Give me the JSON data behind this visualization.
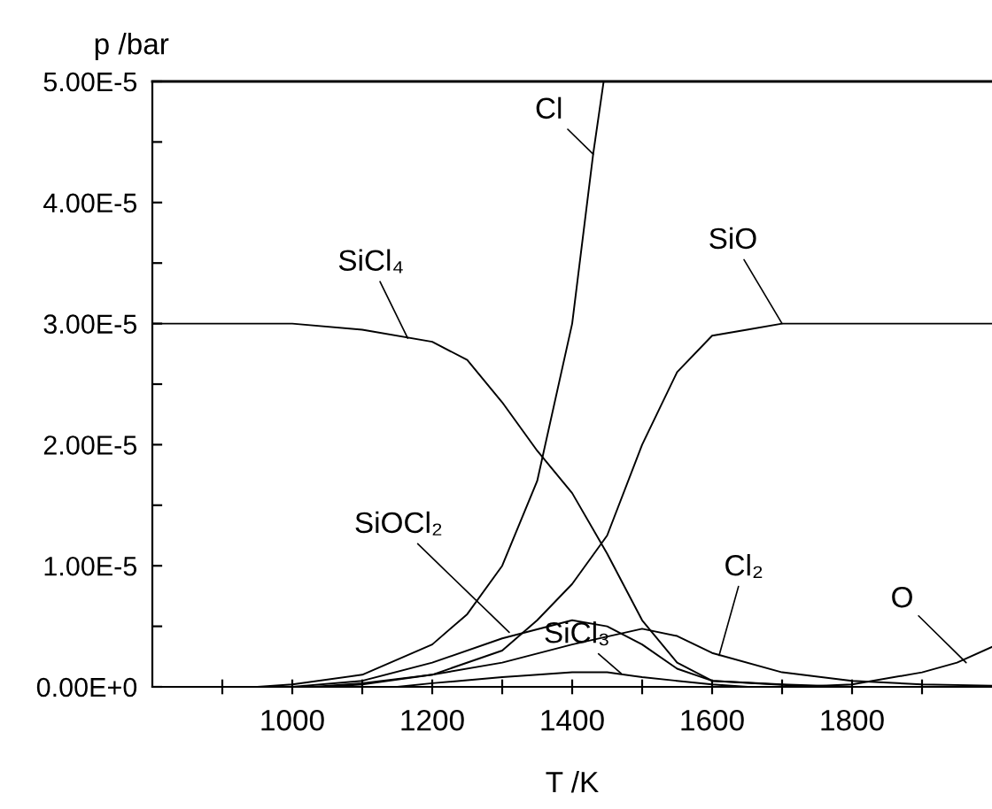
{
  "chart_data": {
    "type": "line",
    "xlabel": "T /K",
    "ylabel": "p /bar",
    "xlim": [
      800,
      2000
    ],
    "ylim": [
      0,
      5e-05
    ],
    "xticks": [
      {
        "value": 900,
        "label": null
      },
      1000,
      {
        "value": 1100,
        "label": null
      },
      1200,
      {
        "value": 1300,
        "label": null
      },
      1400,
      {
        "value": 1500,
        "label": null
      },
      1600,
      {
        "value": 1700,
        "label": null
      },
      1800,
      {
        "value": 1900,
        "label": null
      }
    ],
    "yticks": [
      {
        "value": 0,
        "label": "0.00E+0"
      },
      {
        "value": 5e-06,
        "label": null
      },
      {
        "value": 1e-05,
        "label": "1.00E-5"
      },
      {
        "value": 1.5e-05,
        "label": null
      },
      {
        "value": 2e-05,
        "label": "2.00E-5"
      },
      {
        "value": 2.5e-05,
        "label": null
      },
      {
        "value": 3e-05,
        "label": "3.00E-5"
      },
      {
        "value": 3.5e-05,
        "label": null
      },
      {
        "value": 4e-05,
        "label": "4.00E-5"
      },
      {
        "value": 4.5e-05,
        "label": null
      },
      {
        "value": 5e-05,
        "label": "5.00E-5"
      }
    ],
    "grid": false,
    "legend": false,
    "marker": "none",
    "line_style": "solid",
    "series": [
      {
        "color": "#000000",
        "x": [
          800,
          1000,
          1100,
          1200,
          1250,
          1300,
          1350,
          1400,
          1450,
          1500,
          1550,
          1600,
          1700,
          1800
        ],
        "values": [
          3e-05,
          3e-05,
          2.95e-05,
          2.85e-05,
          2.7e-05,
          2.35e-05,
          1.95e-05,
          1.6e-05,
          1.1e-05,
          5.5e-06,
          2e-06,
          5e-07,
          2e-07,
          0
        ]
      },
      {
        "color": "#000000",
        "x": [
          950,
          1000,
          1100,
          1200,
          1250,
          1300,
          1350,
          1400,
          1430,
          1445
        ],
        "values": [
          0,
          2e-07,
          1e-06,
          3.5e-06,
          6e-06,
          1e-05,
          1.7e-05,
          3e-05,
          4.4e-05,
          5e-05
        ]
      },
      {
        "color": "#000000",
        "x": [
          1050,
          1100,
          1200,
          1300,
          1350,
          1400,
          1450,
          1500,
          1550,
          1600,
          1650,
          1700,
          2000
        ],
        "values": [
          0,
          2e-07,
          1e-06,
          3e-06,
          5.5e-06,
          8.5e-06,
          1.25e-05,
          2e-05,
          2.6e-05,
          2.9e-05,
          2.95e-05,
          3e-05,
          3e-05
        ]
      },
      {
        "color": "#000000",
        "x": [
          1000,
          1100,
          1200,
          1300,
          1400,
          1450,
          1500,
          1550,
          1600,
          1750
        ],
        "values": [
          0,
          5e-07,
          2e-06,
          4e-06,
          5.5e-06,
          5e-06,
          3.5e-06,
          1.5e-06,
          5e-07,
          0
        ]
      },
      {
        "color": "#000000",
        "x": [
          1030,
          1100,
          1200,
          1300,
          1400,
          1500,
          1550,
          1600,
          1700,
          1800,
          1900,
          2000
        ],
        "values": [
          0,
          3e-07,
          1e-06,
          2e-06,
          3.5e-06,
          4.8e-06,
          4.2e-06,
          2.8e-06,
          1.2e-06,
          5e-07,
          2e-07,
          1e-07
        ]
      },
      {
        "color": "#000000",
        "x": [
          1150,
          1200,
          1300,
          1400,
          1450,
          1500,
          1600,
          1650
        ],
        "values": [
          0,
          3e-07,
          8e-07,
          1.2e-06,
          1.2e-06,
          8e-07,
          2e-07,
          0
        ]
      },
      {
        "color": "#000000",
        "x": [
          1720,
          1800,
          1900,
          1950,
          2000
        ],
        "values": [
          0,
          2e-07,
          1.2e-06,
          2e-06,
          3.3e-06
        ]
      }
    ],
    "annotations": [
      {
        "text": "SiCl₄",
        "x": 1165,
        "y": 2.88e-05
      },
      {
        "text": "Cl",
        "x": 1430,
        "y": 4.4e-05
      },
      {
        "text": "SiO",
        "x": 1700,
        "y": 3e-05
      },
      {
        "text": "SiOCl₂",
        "x": 1310,
        "y": 4.5e-06
      },
      {
        "text": "SiCl₃",
        "x": 1470,
        "y": 1.1e-06
      },
      {
        "text": "Cl₂",
        "x": 1610,
        "y": 2.6e-06
      },
      {
        "text": "O",
        "x": 1963,
        "y": 2e-06
      }
    ]
  }
}
